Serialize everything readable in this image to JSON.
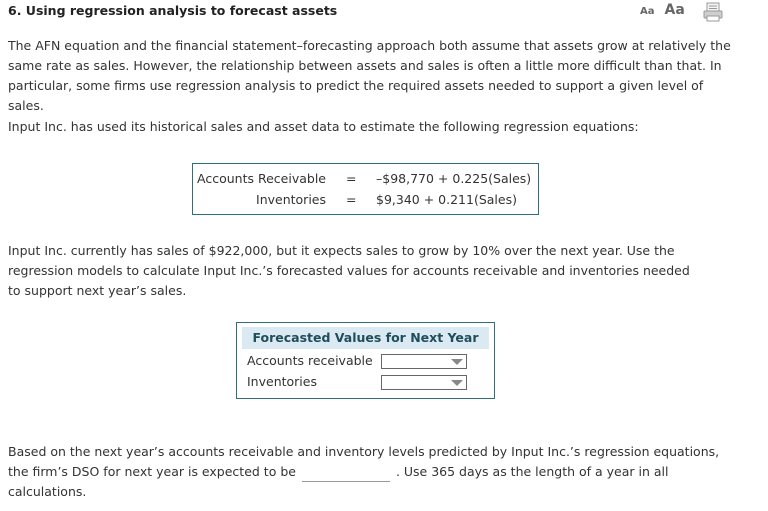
{
  "question": {
    "title": "6. Using regression analysis to forecast assets"
  },
  "toolbar": {
    "small_text": "Aa",
    "large_text": "Aa",
    "print_icon": "printer-icon"
  },
  "intro": "The AFN equation and the financial statement–forecasting approach both assume that assets grow at relatively the same rate as sales. However, the relationship between assets and sales is often a little more difficult than that. In particular, some firms use regression analysis to predict the required assets needed to support a given level of sales.",
  "setup": "Input Inc. has used its historical sales and asset data to estimate the following regression equations:",
  "equations": [
    {
      "label": "Accounts Receivable",
      "sign": "=",
      "expr": "–$98,770 + 0.225(Sales)"
    },
    {
      "label": "Inventories",
      "sign": "=",
      "expr": "$9,340 + 0.211(Sales)"
    }
  ],
  "scenario": "Input Inc. currently has sales of $922,000, but it expects sales to grow by 10% over the next year. Use the regression models to calculate Input Inc.’s forecasted values for accounts receivable and inventories needed to support next year’s sales.",
  "forecast_table": {
    "header": "Forecasted Values for Next Year",
    "rows": [
      {
        "label": "Accounts receivable",
        "value": ""
      },
      {
        "label": "Inventories",
        "value": ""
      }
    ]
  },
  "dso_question": {
    "before": "Based on the next year’s accounts receivable and inventory levels predicted by Input Inc.’s regression equations, the firm’s DSO for next year is expected to be",
    "after": ". Use 365 days as the length of a year in all calculations."
  },
  "colors": {
    "border": "#2d6f7c",
    "header_bg": "#dbe9f3"
  }
}
